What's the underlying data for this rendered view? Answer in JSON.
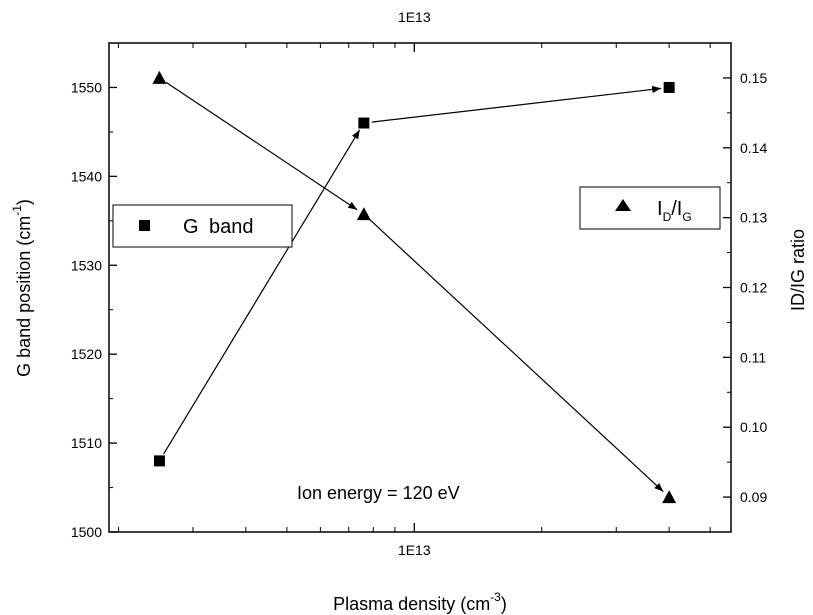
{
  "chart_data": {
    "type": "scatter",
    "title": "",
    "xlabel": "Plasma density (cm",
    "xlabel_sup": "-3",
    "xlabel_close": ")",
    "ylabel_left": "G band position (cm",
    "ylabel_left_sup": "-1",
    "ylabel_left_close": ")",
    "ylabel_right": "ID/IG ratio",
    "x_scale": "log",
    "xlim": [
      1900000000000.0,
      56000000000000.0
    ],
    "ylim_left": [
      1500,
      1555
    ],
    "ylim_right": [
      0.085,
      0.155
    ],
    "x_tick_major": 10000000000000.0,
    "x_tick_major_label": "1E13",
    "x_top_tick_label": "1E13",
    "y_left_ticks": [
      1500,
      1510,
      1520,
      1530,
      1540,
      1550
    ],
    "y_left_tick_labels": [
      "1500",
      "1510",
      "1520",
      "1530",
      "1540",
      "1550"
    ],
    "y_right_ticks": [
      0.09,
      0.1,
      0.11,
      0.12,
      0.13,
      0.14,
      0.15
    ],
    "y_right_tick_labels": [
      "0.09",
      "0.10",
      "0.11",
      "0.12",
      "0.13",
      "0.14",
      "0.15"
    ],
    "grid": false,
    "series": [
      {
        "name": "G band",
        "axis": "left",
        "marker": "square",
        "x": [
          2500000000000.0,
          7600000000000.0,
          40000000000000.0
        ],
        "y": [
          1508,
          1546,
          1550
        ]
      },
      {
        "name": "ID/IG",
        "axis": "right",
        "marker": "triangle",
        "x": [
          2500000000000.0,
          7600000000000.0,
          40000000000000.0
        ],
        "y": [
          0.15,
          0.1305,
          0.09
        ]
      }
    ],
    "legend_left": {
      "label_1": "G",
      "label_2": "band",
      "placement": "left-middle"
    },
    "legend_right": {
      "label_main": "I",
      "label_sub1": "D",
      "label_slash": "/I",
      "label_sub2": "G",
      "placement": "right-middle"
    },
    "annotation": "Ion energy = 120 eV"
  }
}
